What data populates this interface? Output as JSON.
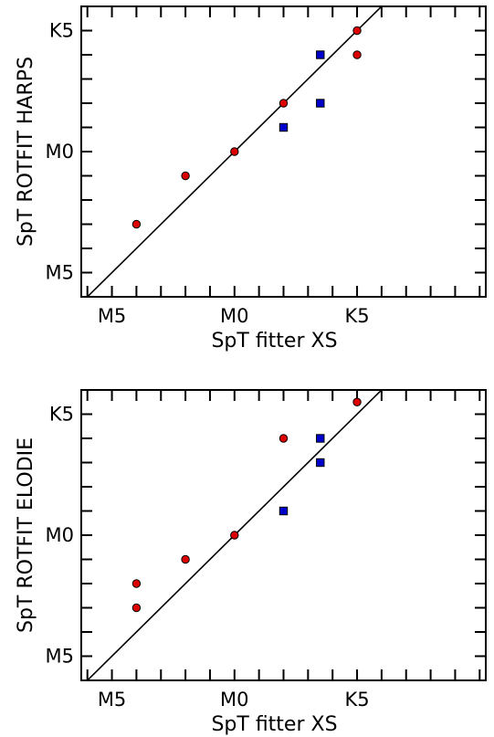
{
  "chart_data": [
    {
      "type": "scatter",
      "xlabel": "SpT fitter XS",
      "ylabel": "SpT ROTFIT HARPS",
      "x_tick_labels": [
        "M5",
        "M0",
        "K5"
      ],
      "y_tick_labels": [
        "K5",
        "M0",
        "M5"
      ],
      "x_tick_values": [
        -5,
        0,
        5
      ],
      "y_tick_values": [
        5,
        0,
        -5
      ],
      "xlim": [
        -6.25,
        10.25
      ],
      "ylim": [
        -6,
        6
      ],
      "axis_encoding": "numeric spectral subtype: M0 = 0, M5 = -5, K5 = +5",
      "series": [
        {
          "marker": "circle",
          "color": "#dd0000",
          "points": [
            [
              -4,
              -3
            ],
            [
              -2,
              -1
            ],
            [
              0,
              0
            ],
            [
              2,
              2
            ],
            [
              5,
              4
            ],
            [
              5,
              5
            ]
          ]
        },
        {
          "marker": "square",
          "color": "#0000cc",
          "points": [
            [
              2,
              1
            ],
            [
              3.5,
              2
            ],
            [
              3.5,
              4
            ]
          ]
        }
      ],
      "reference_line": "y = x"
    },
    {
      "type": "scatter",
      "xlabel": "SpT fitter XS",
      "ylabel": "SpT ROTFIT ELODIE",
      "x_tick_labels": [
        "M5",
        "M0",
        "K5"
      ],
      "y_tick_labels": [
        "K5",
        "M0",
        "M5"
      ],
      "x_tick_values": [
        -5,
        0,
        5
      ],
      "y_tick_values": [
        5,
        0,
        -5
      ],
      "xlim": [
        -6.25,
        10.25
      ],
      "ylim": [
        -6,
        6
      ],
      "axis_encoding": "numeric spectral subtype: M0 = 0, M5 = -5, K5 = +5",
      "series": [
        {
          "marker": "circle",
          "color": "#dd0000",
          "points": [
            [
              -4,
              -3
            ],
            [
              -4,
              -2
            ],
            [
              -2,
              -1
            ],
            [
              0,
              0
            ],
            [
              2,
              4
            ],
            [
              5,
              5.5
            ]
          ]
        },
        {
          "marker": "square",
          "color": "#0000cc",
          "points": [
            [
              2,
              1
            ],
            [
              3.5,
              3
            ],
            [
              3.5,
              4
            ]
          ]
        }
      ],
      "reference_line": "y = x"
    }
  ]
}
